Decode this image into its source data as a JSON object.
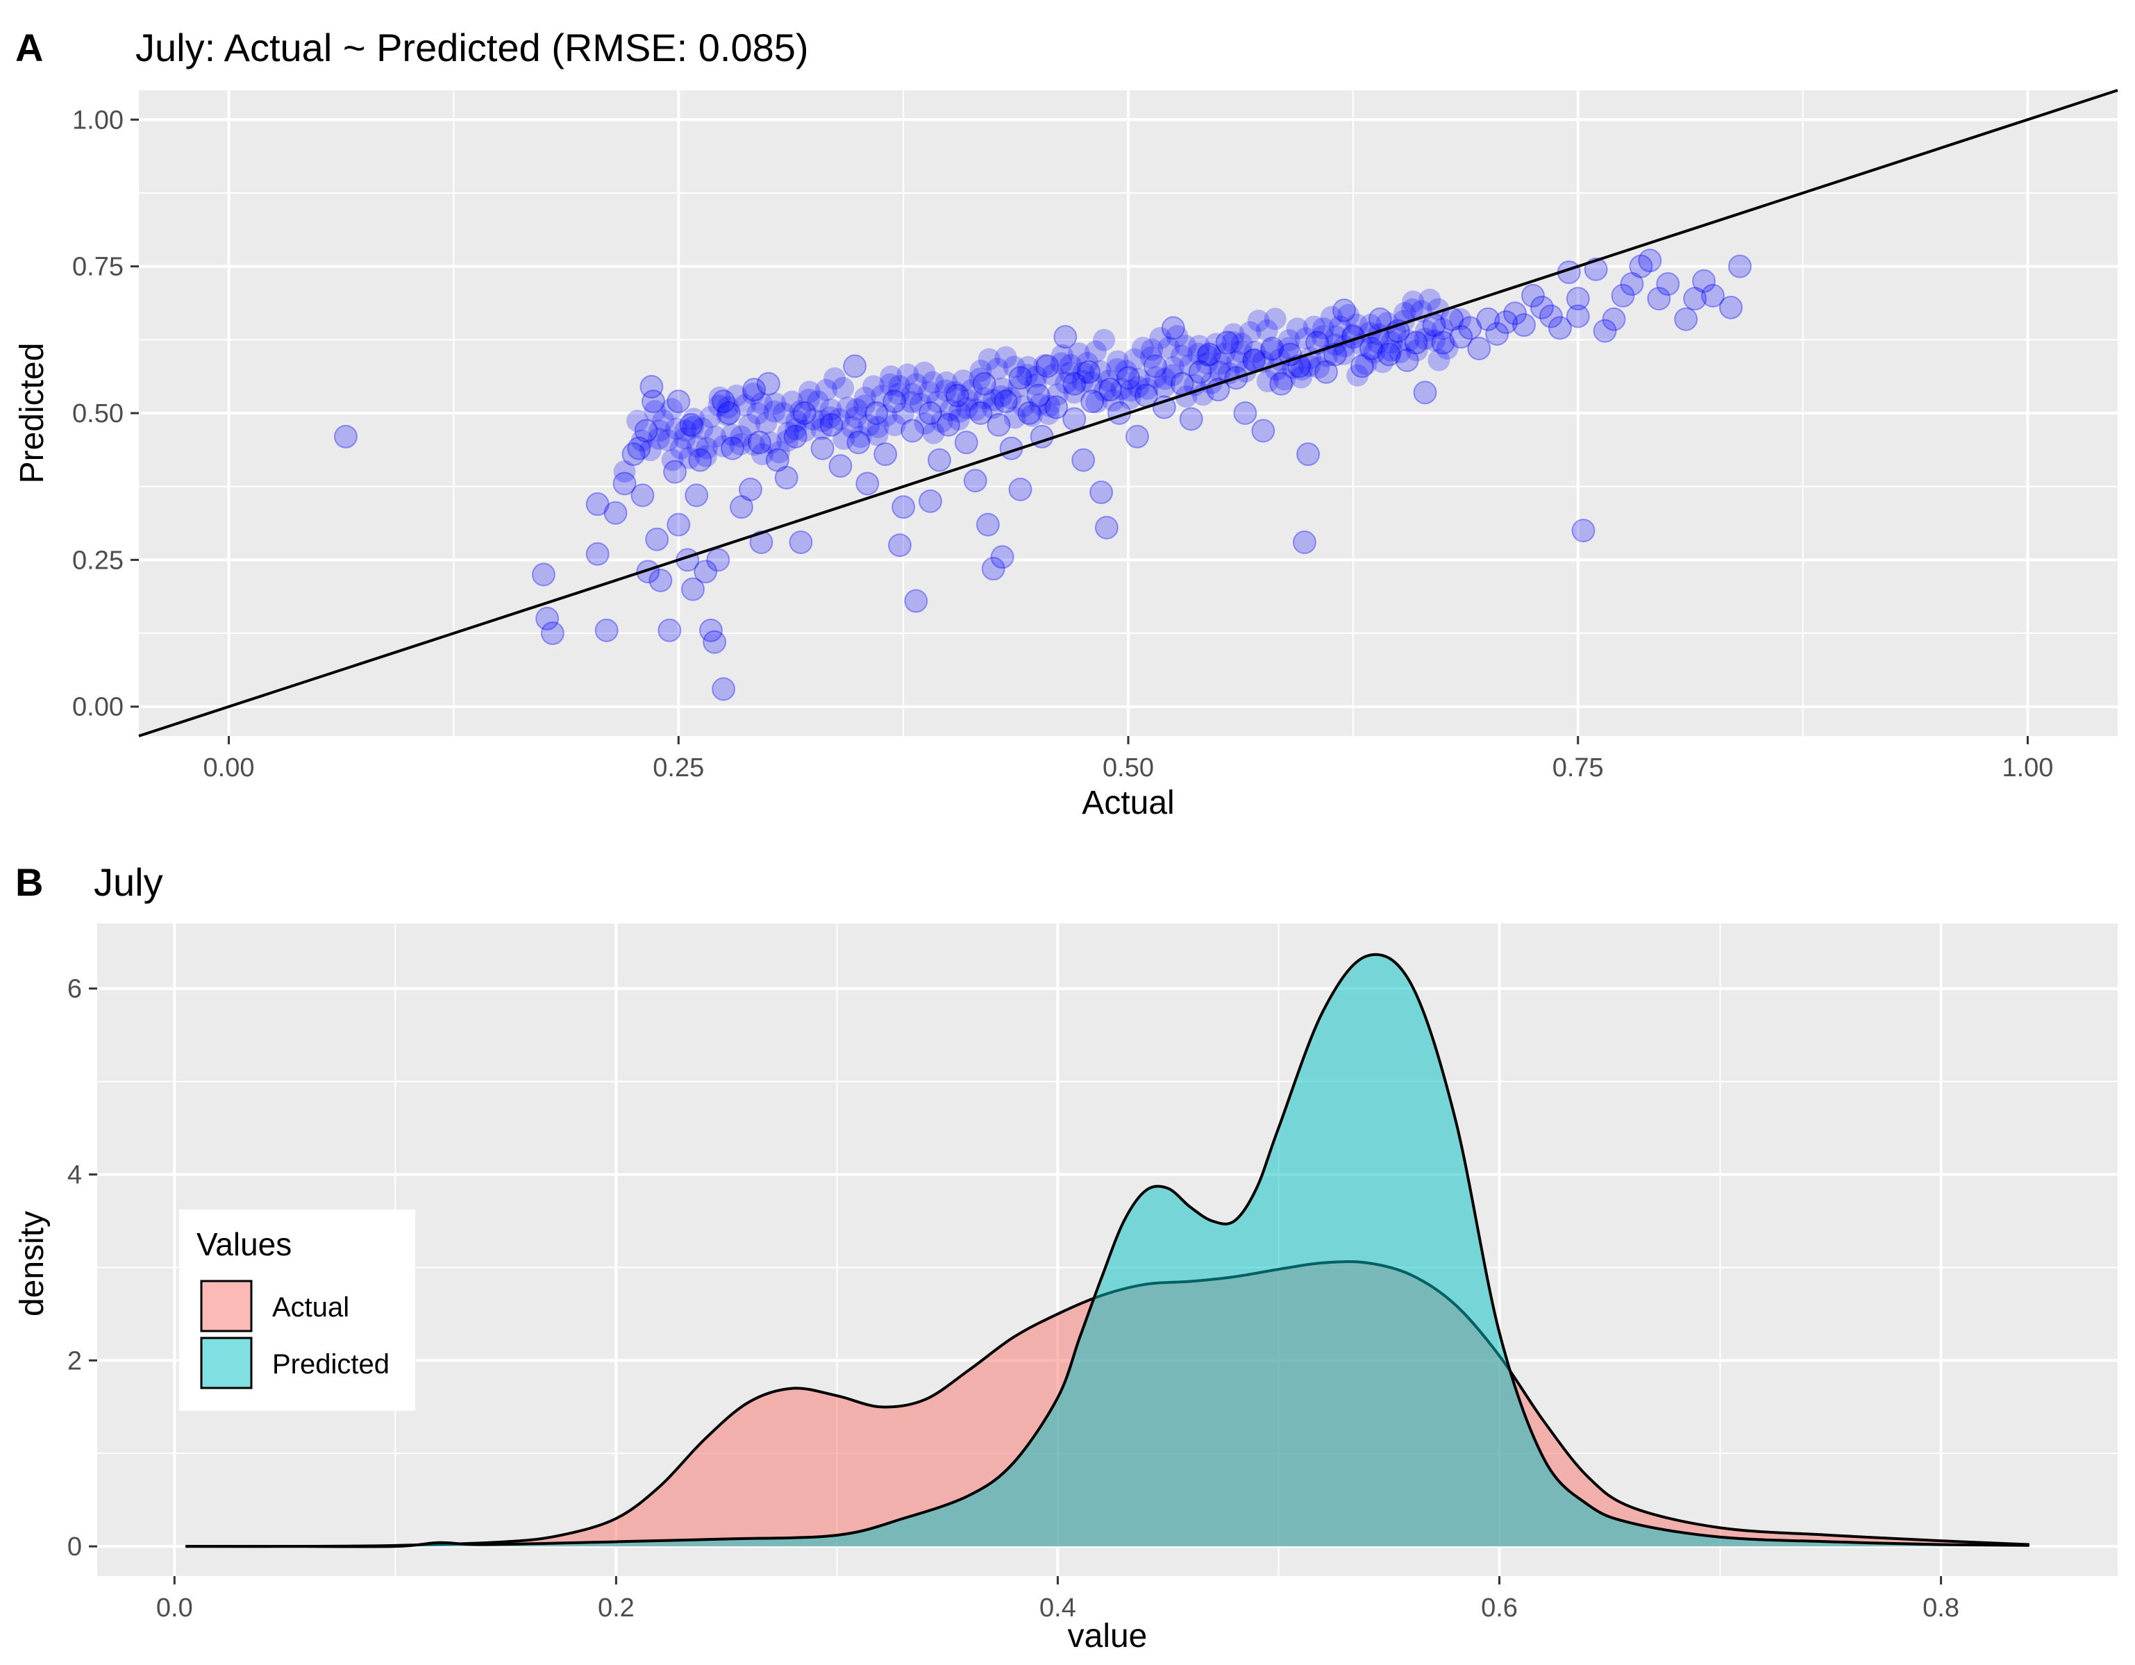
{
  "panels": {
    "a_tag": "A",
    "b_tag": "B"
  },
  "colors": {
    "point": "#0000ff",
    "actual_fill": "#f8766d",
    "predicted_fill": "#00bfc4",
    "panel_background": "#ebebeb",
    "grid": "#ffffff"
  },
  "chart_data": [
    {
      "type": "scatter",
      "title": "July: Actual ~ Predicted (RMSE: 0.085)",
      "xlabel": "Actual",
      "ylabel": "Predicted",
      "xlim": [
        -0.05,
        1.05
      ],
      "ylim": [
        -0.05,
        1.05
      ],
      "x_ticks": [
        0.0,
        0.25,
        0.5,
        0.75,
        1.0
      ],
      "x_tick_labels": [
        "0.00",
        "0.25",
        "0.50",
        "0.75",
        "1.00"
      ],
      "y_ticks": [
        0.0,
        0.25,
        0.5,
        0.75,
        1.0
      ],
      "y_tick_labels": [
        "0.00",
        "0.25",
        "0.50",
        "0.75",
        "1.00"
      ],
      "grid": true,
      "reference_line": {
        "intercept": 0,
        "slope": 1
      },
      "point_alpha": 0.25,
      "points": [
        [
          0.065,
          0.46
        ],
        [
          0.175,
          0.225
        ],
        [
          0.177,
          0.15
        ],
        [
          0.18,
          0.125
        ],
        [
          0.205,
          0.26
        ],
        [
          0.205,
          0.345
        ],
        [
          0.21,
          0.13
        ],
        [
          0.215,
          0.33
        ],
        [
          0.22,
          0.38
        ],
        [
          0.225,
          0.43
        ],
        [
          0.228,
          0.44
        ],
        [
          0.23,
          0.36
        ],
        [
          0.232,
          0.47
        ],
        [
          0.233,
          0.23
        ],
        [
          0.235,
          0.545
        ],
        [
          0.236,
          0.52
        ],
        [
          0.238,
          0.285
        ],
        [
          0.24,
          0.215
        ],
        [
          0.245,
          0.13
        ],
        [
          0.248,
          0.4
        ],
        [
          0.25,
          0.31
        ],
        [
          0.25,
          0.52
        ],
        [
          0.255,
          0.25
        ],
        [
          0.257,
          0.48
        ],
        [
          0.258,
          0.2
        ],
        [
          0.26,
          0.36
        ],
        [
          0.262,
          0.42
        ],
        [
          0.265,
          0.23
        ],
        [
          0.268,
          0.13
        ],
        [
          0.27,
          0.11
        ],
        [
          0.272,
          0.25
        ],
        [
          0.275,
          0.03
        ],
        [
          0.275,
          0.52
        ],
        [
          0.278,
          0.5
        ],
        [
          0.28,
          0.44
        ],
        [
          0.285,
          0.34
        ],
        [
          0.29,
          0.37
        ],
        [
          0.292,
          0.54
        ],
        [
          0.295,
          0.45
        ],
        [
          0.296,
          0.28
        ],
        [
          0.3,
          0.55
        ],
        [
          0.305,
          0.42
        ],
        [
          0.31,
          0.39
        ],
        [
          0.315,
          0.46
        ],
        [
          0.318,
          0.28
        ],
        [
          0.32,
          0.5
        ],
        [
          0.33,
          0.44
        ],
        [
          0.335,
          0.48
        ],
        [
          0.34,
          0.41
        ],
        [
          0.348,
          0.58
        ],
        [
          0.35,
          0.45
        ],
        [
          0.355,
          0.38
        ],
        [
          0.36,
          0.5
        ],
        [
          0.365,
          0.43
        ],
        [
          0.37,
          0.52
        ],
        [
          0.373,
          0.275
        ],
        [
          0.375,
          0.34
        ],
        [
          0.38,
          0.47
        ],
        [
          0.382,
          0.18
        ],
        [
          0.39,
          0.35
        ],
        [
          0.39,
          0.5
        ],
        [
          0.395,
          0.42
        ],
        [
          0.4,
          0.48
        ],
        [
          0.405,
          0.53
        ],
        [
          0.41,
          0.45
        ],
        [
          0.415,
          0.385
        ],
        [
          0.418,
          0.5
        ],
        [
          0.42,
          0.55
        ],
        [
          0.422,
          0.31
        ],
        [
          0.425,
          0.235
        ],
        [
          0.428,
          0.48
        ],
        [
          0.43,
          0.255
        ],
        [
          0.432,
          0.52
        ],
        [
          0.435,
          0.44
        ],
        [
          0.44,
          0.56
        ],
        [
          0.44,
          0.37
        ],
        [
          0.445,
          0.5
        ],
        [
          0.45,
          0.53
        ],
        [
          0.452,
          0.46
        ],
        [
          0.455,
          0.58
        ],
        [
          0.46,
          0.51
        ],
        [
          0.465,
          0.63
        ],
        [
          0.47,
          0.49
        ],
        [
          0.47,
          0.55
        ],
        [
          0.475,
          0.42
        ],
        [
          0.478,
          0.57
        ],
        [
          0.48,
          0.52
        ],
        [
          0.485,
          0.365
        ],
        [
          0.488,
          0.305
        ],
        [
          0.49,
          0.54
        ],
        [
          0.495,
          0.5
        ],
        [
          0.5,
          0.56
        ],
        [
          0.505,
          0.46
        ],
        [
          0.51,
          0.53
        ],
        [
          0.515,
          0.58
        ],
        [
          0.52,
          0.51
        ],
        [
          0.525,
          0.645
        ],
        [
          0.53,
          0.55
        ],
        [
          0.535,
          0.49
        ],
        [
          0.54,
          0.57
        ],
        [
          0.545,
          0.6
        ],
        [
          0.55,
          0.54
        ],
        [
          0.555,
          0.62
        ],
        [
          0.56,
          0.56
        ],
        [
          0.565,
          0.5
        ],
        [
          0.57,
          0.59
        ],
        [
          0.575,
          0.47
        ],
        [
          0.58,
          0.61
        ],
        [
          0.585,
          0.55
        ],
        [
          0.59,
          0.6
        ],
        [
          0.595,
          0.58
        ],
        [
          0.598,
          0.28
        ],
        [
          0.6,
          0.43
        ],
        [
          0.605,
          0.62
        ],
        [
          0.61,
          0.57
        ],
        [
          0.615,
          0.6
        ],
        [
          0.62,
          0.675
        ],
        [
          0.625,
          0.63
        ],
        [
          0.63,
          0.58
        ],
        [
          0.635,
          0.61
        ],
        [
          0.64,
          0.66
        ],
        [
          0.645,
          0.6
        ],
        [
          0.65,
          0.64
        ],
        [
          0.655,
          0.59
        ],
        [
          0.66,
          0.62
        ],
        [
          0.665,
          0.535
        ],
        [
          0.67,
          0.65
        ],
        [
          0.675,
          0.62
        ],
        [
          0.68,
          0.66
        ],
        [
          0.685,
          0.63
        ],
        [
          0.69,
          0.645
        ],
        [
          0.695,
          0.61
        ],
        [
          0.7,
          0.66
        ],
        [
          0.705,
          0.635
        ],
        [
          0.71,
          0.655
        ],
        [
          0.715,
          0.67
        ],
        [
          0.72,
          0.65
        ],
        [
          0.725,
          0.7
        ],
        [
          0.73,
          0.68
        ],
        [
          0.735,
          0.665
        ],
        [
          0.74,
          0.645
        ],
        [
          0.745,
          0.74
        ],
        [
          0.75,
          0.665
        ],
        [
          0.75,
          0.695
        ],
        [
          0.753,
          0.3
        ],
        [
          0.76,
          0.745
        ],
        [
          0.765,
          0.64
        ],
        [
          0.77,
          0.66
        ],
        [
          0.775,
          0.7
        ],
        [
          0.78,
          0.72
        ],
        [
          0.785,
          0.75
        ],
        [
          0.79,
          0.76
        ],
        [
          0.795,
          0.695
        ],
        [
          0.8,
          0.72
        ],
        [
          0.81,
          0.66
        ],
        [
          0.815,
          0.695
        ],
        [
          0.82,
          0.725
        ],
        [
          0.835,
          0.68
        ],
        [
          0.84,
          0.75
        ],
        [
          0.825,
          0.7
        ]
      ]
    },
    {
      "type": "area",
      "title": "July",
      "xlabel": "value",
      "ylabel": "density",
      "xlim": [
        -0.035,
        0.88
      ],
      "ylim": [
        -0.32,
        6.7
      ],
      "x_ticks": [
        0.0,
        0.2,
        0.4,
        0.6,
        0.8
      ],
      "x_tick_labels": [
        "0.0",
        "0.2",
        "0.4",
        "0.6",
        "0.8"
      ],
      "y_ticks": [
        0,
        2,
        4,
        6
      ],
      "y_tick_labels": [
        "0",
        "2",
        "4",
        "6"
      ],
      "grid": true,
      "fill_alpha": 0.5,
      "legend": {
        "title": "Values",
        "position": "left"
      },
      "series": [
        {
          "name": "Actual",
          "color": "#f8766d",
          "x": [
            0.005,
            0.05,
            0.1,
            0.15,
            0.175,
            0.2,
            0.22,
            0.24,
            0.26,
            0.28,
            0.3,
            0.32,
            0.34,
            0.36,
            0.38,
            0.4,
            0.42,
            0.44,
            0.46,
            0.48,
            0.5,
            0.52,
            0.54,
            0.56,
            0.58,
            0.6,
            0.62,
            0.64,
            0.66,
            0.7,
            0.75,
            0.8,
            0.84
          ],
          "y": [
            0.0,
            0.0,
            0.01,
            0.05,
            0.12,
            0.3,
            0.65,
            1.15,
            1.55,
            1.7,
            1.62,
            1.5,
            1.58,
            1.9,
            2.25,
            2.5,
            2.7,
            2.82,
            2.85,
            2.9,
            2.98,
            3.05,
            3.05,
            2.92,
            2.6,
            2.05,
            1.35,
            0.75,
            0.42,
            0.2,
            0.12,
            0.06,
            0.02
          ]
        },
        {
          "name": "Predicted",
          "color": "#00bfc4",
          "x": [
            0.005,
            0.05,
            0.1,
            0.12,
            0.14,
            0.2,
            0.25,
            0.3,
            0.33,
            0.36,
            0.38,
            0.4,
            0.41,
            0.42,
            0.43,
            0.44,
            0.45,
            0.46,
            0.47,
            0.48,
            0.49,
            0.5,
            0.52,
            0.54,
            0.56,
            0.58,
            0.6,
            0.62,
            0.64,
            0.66,
            0.7,
            0.75,
            0.8,
            0.84
          ],
          "y": [
            0.0,
            0.0,
            0.0,
            0.04,
            0.02,
            0.05,
            0.08,
            0.12,
            0.3,
            0.55,
            0.9,
            1.6,
            2.25,
            2.9,
            3.5,
            3.83,
            3.85,
            3.65,
            3.5,
            3.5,
            3.85,
            4.5,
            5.75,
            6.35,
            6.05,
            4.6,
            2.3,
            0.95,
            0.45,
            0.25,
            0.1,
            0.05,
            0.02,
            0.01
          ]
        }
      ]
    }
  ]
}
